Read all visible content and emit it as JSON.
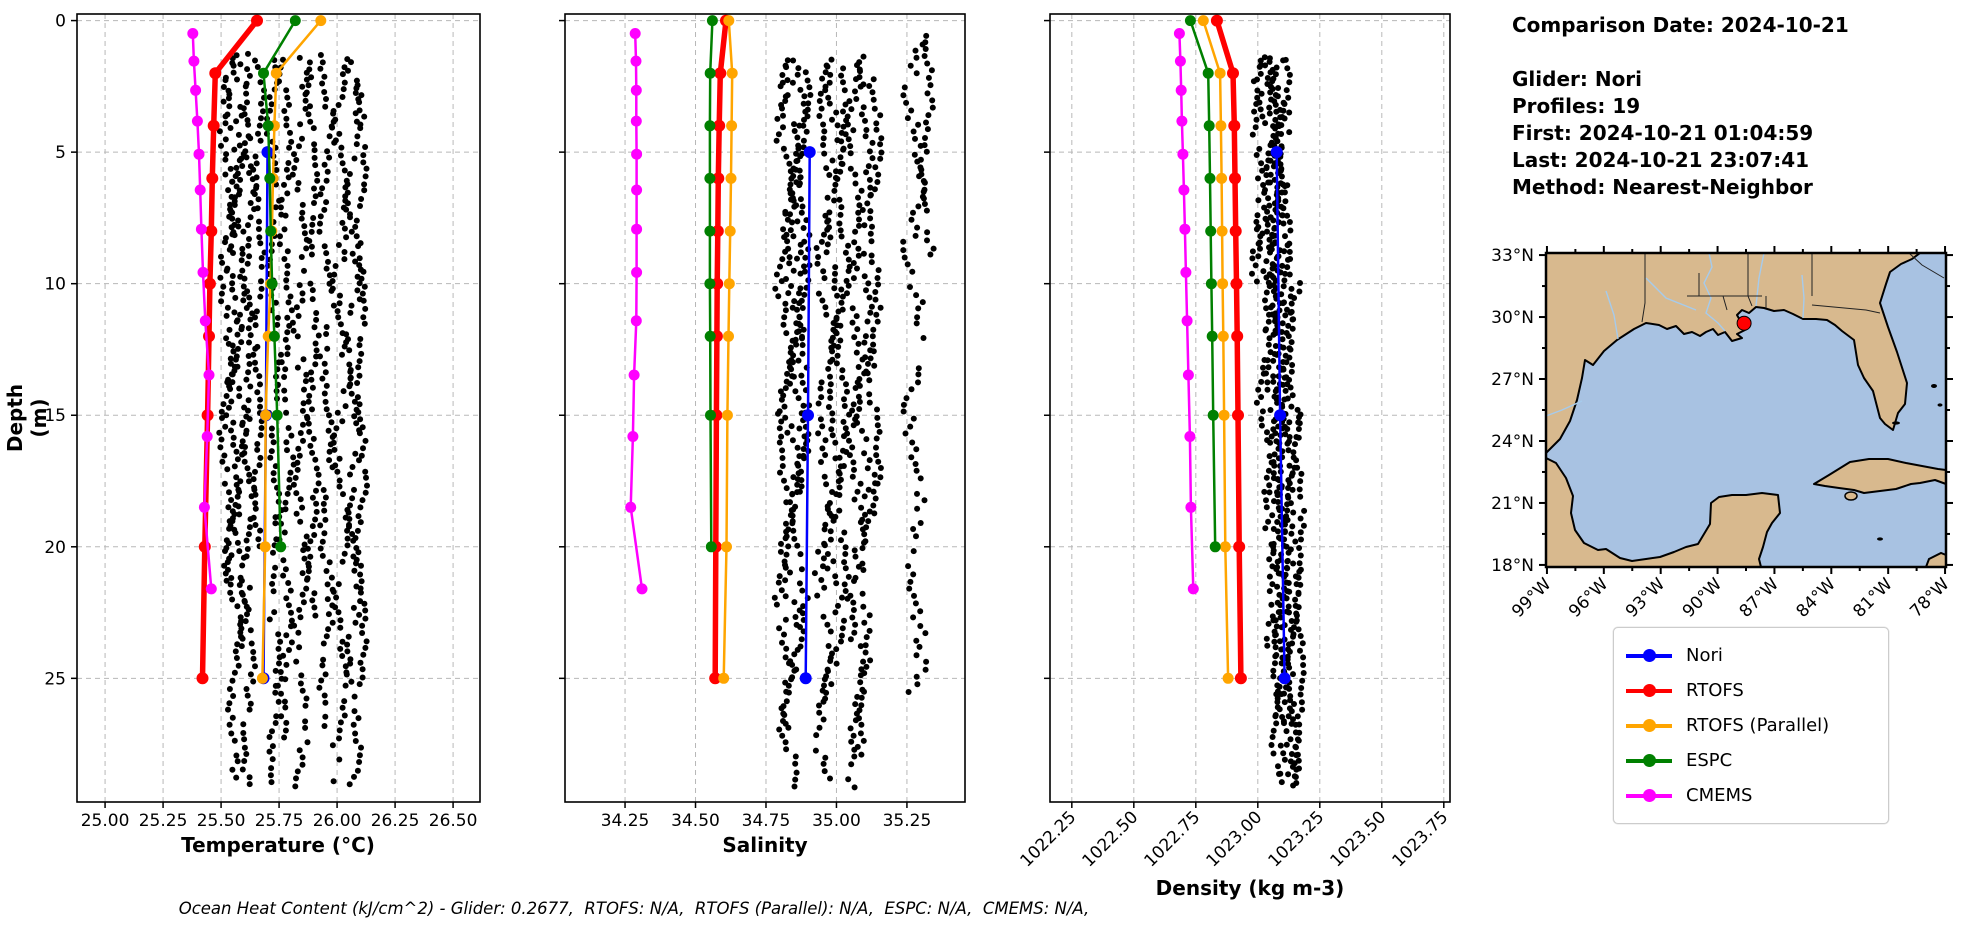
{
  "meta": {
    "ylabel": "Depth (m)",
    "annotation": "Ocean Heat Content (kJ/cm^2) - Glider: 0.2677,  RTOFS: N/A,  RTOFS (Parallel): N/A,  ESPC: N/A,  CMEMS: N/A,"
  },
  "info": {
    "title": "Comparison Date: 2024-10-21",
    "lines": [
      "Glider: Nori",
      "Profiles: 19",
      "First: 2024-10-21 01:04:59",
      "Last: 2024-10-21 23:07:41",
      "Method: Nearest-Neighbor"
    ]
  },
  "colors": {
    "nori": "#0000ff",
    "rtofs": "#ff0000",
    "rtofs_parallel": "#ffa500",
    "espc": "#008000",
    "cmems": "#ff00ff",
    "glider": "#00ffff",
    "grid": "#b8b8b8",
    "spine": "#000000"
  },
  "legend": [
    {
      "label": "Nori",
      "color": "nori"
    },
    {
      "label": "RTOFS",
      "color": "rtofs"
    },
    {
      "label": "RTOFS (Parallel)",
      "color": "rtofs_parallel"
    },
    {
      "label": "ESPC",
      "color": "espc"
    },
    {
      "label": "CMEMS",
      "color": "cmems"
    }
  ],
  "chart_data": [
    {
      "type": "scatter",
      "name": "temperature-profile",
      "xlabel": "Temperature (°C)",
      "ylabel": "Depth (m)",
      "xlim": [
        24.879,
        26.616
      ],
      "ylim": [
        29.7,
        -0.25
      ],
      "xticks": [
        {
          "v": 25.0,
          "l": "25.00"
        },
        {
          "v": 25.25,
          "l": "25.25"
        },
        {
          "v": 25.5,
          "l": "25.50"
        },
        {
          "v": 25.75,
          "l": "25.75"
        },
        {
          "v": 26.0,
          "l": "26.00"
        },
        {
          "v": 26.25,
          "l": "26.25"
        },
        {
          "v": 26.5,
          "l": "26.50"
        }
      ],
      "yticks": [
        {
          "v": 0,
          "l": "0"
        },
        {
          "v": 5,
          "l": "5"
        },
        {
          "v": 10,
          "l": "10"
        },
        {
          "v": 15,
          "l": "15"
        },
        {
          "v": 20,
          "l": "20"
        },
        {
          "v": 25,
          "l": "25"
        }
      ],
      "rotate_xticklabels": false,
      "show_yticklabels": true,
      "series": [
        {
          "name": "Nori",
          "color": "nori",
          "lw": 2.5,
          "mr": 6,
          "depths": [
            5,
            15,
            25
          ],
          "values": [
            25.7,
            25.693,
            25.683
          ]
        },
        {
          "name": "RTOFS",
          "color": "rtofs",
          "lw": 5.5,
          "mr": 6,
          "depths": [
            0,
            2,
            4,
            6,
            8,
            10,
            12,
            15,
            20,
            25
          ],
          "values": [
            25.655,
            25.475,
            25.468,
            25.462,
            25.458,
            25.452,
            25.448,
            25.442,
            25.43,
            25.42
          ]
        },
        {
          "name": "RTOFS (Parallel)",
          "color": "rtofs_parallel",
          "lw": 2.5,
          "mr": 5.5,
          "depths": [
            0,
            2,
            4,
            6,
            8,
            10,
            12,
            15,
            20,
            25
          ],
          "values": [
            25.93,
            25.738,
            25.73,
            25.724,
            25.719,
            25.713,
            25.703,
            25.692,
            25.69,
            25.678
          ]
        },
        {
          "name": "ESPC",
          "color": "espc",
          "lw": 2.5,
          "mr": 5.5,
          "depths": [
            0,
            2,
            4,
            6,
            8,
            10,
            12,
            15,
            20
          ],
          "values": [
            25.82,
            25.683,
            25.703,
            25.71,
            25.714,
            25.72,
            25.73,
            25.742,
            25.757
          ]
        },
        {
          "name": "CMEMS",
          "color": "cmems",
          "lw": 2.5,
          "mr": 5.5,
          "depths": [
            0.49,
            1.54,
            2.65,
            3.82,
            5.08,
            6.44,
            7.93,
            9.57,
            11.41,
            13.47,
            15.81,
            18.5,
            21.6
          ],
          "values": [
            25.378,
            25.383,
            25.39,
            25.398,
            25.405,
            25.41,
            25.415,
            25.422,
            25.432,
            25.448,
            25.44,
            25.428,
            25.458
          ]
        }
      ],
      "glider_scatter": {
        "name": "Glider (raw profiles)",
        "color": "glider",
        "dot_r": 3,
        "profiles": [
          [
            25.525,
            0.02,
            1.4,
            21.5,
            0.5
          ],
          [
            25.555,
            0.02,
            1.3,
            29.2,
            2.0
          ],
          [
            25.585,
            0.025,
            1.4,
            24.0,
            3.8
          ],
          [
            25.615,
            0.02,
            1.3,
            29.2,
            1.2
          ],
          [
            25.66,
            0.015,
            1.5,
            20.0,
            4.6
          ],
          [
            25.73,
            0.02,
            1.5,
            29.2,
            0.8
          ],
          [
            25.78,
            0.02,
            1.5,
            27.5,
            2.9
          ],
          [
            25.845,
            0.02,
            1.4,
            29.2,
            5.1
          ],
          [
            25.895,
            0.015,
            1.6,
            23.0,
            1.9
          ],
          [
            25.955,
            0.02,
            1.3,
            27.0,
            3.3
          ],
          [
            26.02,
            0.025,
            1.5,
            29.2,
            0.2
          ],
          [
            26.07,
            0.02,
            1.6,
            29.2,
            4.0
          ],
          [
            26.105,
            0.015,
            2.0,
            26.0,
            2.5
          ]
        ]
      }
    },
    {
      "type": "scatter",
      "name": "salinity-profile",
      "xlabel": "Salinity",
      "ylabel": "Depth (m)",
      "xlim": [
        34.037,
        35.456
      ],
      "ylim": [
        29.7,
        -0.25
      ],
      "xticks": [
        {
          "v": 34.25,
          "l": "34.25"
        },
        {
          "v": 34.5,
          "l": "34.50"
        },
        {
          "v": 34.75,
          "l": "34.75"
        },
        {
          "v": 35.0,
          "l": "35.00"
        },
        {
          "v": 35.25,
          "l": "35.25"
        }
      ],
      "yticks": [
        {
          "v": 0,
          "l": "0"
        },
        {
          "v": 5,
          "l": "5"
        },
        {
          "v": 10,
          "l": "10"
        },
        {
          "v": 15,
          "l": "15"
        },
        {
          "v": 20,
          "l": "20"
        },
        {
          "v": 25,
          "l": "25"
        }
      ],
      "rotate_xticklabels": false,
      "show_yticklabels": false,
      "series": [
        {
          "name": "Nori",
          "color": "nori",
          "lw": 2.5,
          "mr": 6,
          "depths": [
            5,
            15,
            25
          ],
          "values": [
            34.905,
            34.899,
            34.891
          ]
        },
        {
          "name": "RTOFS",
          "color": "rtofs",
          "lw": 5.5,
          "mr": 6,
          "depths": [
            0,
            2,
            4,
            6,
            8,
            10,
            12,
            15,
            20,
            25
          ],
          "values": [
            34.608,
            34.588,
            34.584,
            34.581,
            34.579,
            34.577,
            34.576,
            34.574,
            34.572,
            34.57
          ]
        },
        {
          "name": "RTOFS (Parallel)",
          "color": "rtofs_parallel",
          "lw": 2.5,
          "mr": 5.5,
          "depths": [
            0,
            2,
            4,
            6,
            8,
            10,
            12,
            15,
            20,
            25
          ],
          "values": [
            34.618,
            34.63,
            34.628,
            34.626,
            34.623,
            34.62,
            34.617,
            34.613,
            34.61,
            34.6
          ]
        },
        {
          "name": "ESPC",
          "color": "espc",
          "lw": 2.5,
          "mr": 5.5,
          "depths": [
            0,
            2,
            4,
            6,
            8,
            10,
            12,
            15,
            20
          ],
          "values": [
            34.56,
            34.552,
            34.551,
            34.551,
            34.551,
            34.551,
            34.552,
            34.553,
            34.556
          ]
        },
        {
          "name": "CMEMS",
          "color": "cmems",
          "lw": 2.5,
          "mr": 5.5,
          "depths": [
            0.49,
            1.54,
            2.65,
            3.82,
            5.08,
            6.44,
            7.93,
            9.57,
            11.41,
            13.47,
            15.81,
            18.5,
            21.6
          ],
          "values": [
            34.286,
            34.289,
            34.29,
            34.29,
            34.291,
            34.291,
            34.291,
            34.291,
            34.29,
            34.282,
            34.278,
            34.27,
            34.31
          ]
        }
      ],
      "glider_scatter": {
        "name": "Glider (raw profiles)",
        "color": "glider",
        "dot_r": 3,
        "profiles": [
          [
            34.815,
            0.02,
            1.5,
            27.0,
            0.7
          ],
          [
            34.84,
            0.025,
            1.4,
            29.2,
            2.1
          ],
          [
            34.865,
            0.02,
            1.5,
            25.0,
            3.6
          ],
          [
            34.882,
            0.015,
            2.0,
            18.0,
            5.0
          ],
          [
            34.96,
            0.02,
            1.4,
            29.2,
            1.3
          ],
          [
            34.99,
            0.02,
            1.5,
            26.0,
            2.8
          ],
          [
            35.02,
            0.015,
            1.8,
            22.0,
            4.4
          ],
          [
            35.07,
            0.02,
            1.4,
            29.2,
            0.3
          ],
          [
            35.1,
            0.02,
            1.6,
            28.0,
            2.0
          ],
          [
            35.135,
            0.015,
            2.2,
            19.0,
            3.1
          ],
          [
            35.28,
            0.025,
            0.6,
            26.0,
            1.7
          ],
          [
            35.32,
            0.015,
            0.8,
            9.0,
            4.9
          ]
        ]
      }
    },
    {
      "type": "scatter",
      "name": "density-profile",
      "xlabel": "Density (kg m-3)",
      "ylabel": "Depth (m)",
      "xlim": [
        1022.162,
        1023.775
      ],
      "ylim": [
        29.7,
        -0.25
      ],
      "xticks": [
        {
          "v": 1022.25,
          "l": "1022.25"
        },
        {
          "v": 1022.5,
          "l": "1022.50"
        },
        {
          "v": 1022.75,
          "l": "1022.75"
        },
        {
          "v": 1023.0,
          "l": "1023.00"
        },
        {
          "v": 1023.25,
          "l": "1023.25"
        },
        {
          "v": 1023.5,
          "l": "1023.50"
        },
        {
          "v": 1023.75,
          "l": "1023.75"
        }
      ],
      "yticks": [
        {
          "v": 0,
          "l": "0"
        },
        {
          "v": 5,
          "l": "5"
        },
        {
          "v": 10,
          "l": "10"
        },
        {
          "v": 15,
          "l": "15"
        },
        {
          "v": 20,
          "l": "20"
        },
        {
          "v": 25,
          "l": "25"
        }
      ],
      "rotate_xticklabels": true,
      "show_yticklabels": false,
      "series": [
        {
          "name": "Nori",
          "color": "nori",
          "lw": 2.5,
          "mr": 6,
          "depths": [
            5,
            15,
            25
          ],
          "values": [
            1023.076,
            1023.09,
            1023.108
          ]
        },
        {
          "name": "RTOFS",
          "color": "rtofs",
          "lw": 5.5,
          "mr": 6,
          "depths": [
            0,
            2,
            4,
            6,
            8,
            10,
            12,
            15,
            20,
            25
          ],
          "values": [
            1022.835,
            1022.9,
            1022.905,
            1022.908,
            1022.911,
            1022.914,
            1022.917,
            1022.92,
            1022.925,
            1022.932
          ]
        },
        {
          "name": "RTOFS (Parallel)",
          "color": "rtofs_parallel",
          "lw": 2.5,
          "mr": 5.5,
          "depths": [
            0,
            2,
            4,
            6,
            8,
            10,
            12,
            15,
            20,
            25
          ],
          "values": [
            1022.78,
            1022.848,
            1022.851,
            1022.854,
            1022.856,
            1022.858,
            1022.861,
            1022.864,
            1022.869,
            1022.88
          ]
        },
        {
          "name": "ESPC",
          "color": "espc",
          "lw": 2.5,
          "mr": 5.5,
          "depths": [
            0,
            2,
            4,
            6,
            8,
            10,
            12,
            15,
            20
          ],
          "values": [
            1022.728,
            1022.8,
            1022.804,
            1022.807,
            1022.81,
            1022.813,
            1022.816,
            1022.82,
            1022.828
          ]
        },
        {
          "name": "CMEMS",
          "color": "cmems",
          "lw": 2.5,
          "mr": 5.5,
          "depths": [
            0.49,
            1.54,
            2.65,
            3.82,
            5.08,
            6.44,
            7.93,
            9.57,
            11.41,
            13.47,
            15.81,
            18.5,
            21.6
          ],
          "values": [
            1022.684,
            1022.688,
            1022.691,
            1022.694,
            1022.698,
            1022.702,
            1022.706,
            1022.71,
            1022.715,
            1022.72,
            1022.726,
            1022.73,
            1022.74
          ]
        }
      ],
      "glider_scatter": {
        "name": "Glider (raw profiles)",
        "color": "glider",
        "dot_r": 3,
        "profiles": [
          [
            1023.0,
            0.015,
            1.5,
            10.0,
            0.9
          ],
          [
            1023.03,
            0.02,
            1.4,
            18.0,
            2.3
          ],
          [
            1023.055,
            0.02,
            1.4,
            24.0,
            3.9
          ],
          [
            1023.08,
            0.02,
            1.5,
            29.2,
            1.1
          ],
          [
            1023.1,
            0.02,
            1.5,
            29.2,
            5.2
          ],
          [
            1023.12,
            0.015,
            6.0,
            29.2,
            2.7
          ],
          [
            1023.145,
            0.015,
            10.0,
            29.2,
            4.1
          ],
          [
            1023.17,
            0.012,
            15.0,
            29.2,
            0.4
          ],
          [
            1023.06,
            0.015,
            1.6,
            12.0,
            1.8
          ],
          [
            1023.09,
            0.02,
            2.0,
            27.0,
            3.4
          ]
        ]
      }
    }
  ],
  "map": {
    "lat_ticks": [
      {
        "v": 33,
        "l": "33°N"
      },
      {
        "v": 30,
        "l": "30°N"
      },
      {
        "v": 27,
        "l": "27°N"
      },
      {
        "v": 24,
        "l": "24°N"
      },
      {
        "v": 21,
        "l": "21°N"
      },
      {
        "v": 18,
        "l": "18°N"
      }
    ],
    "lon_ticks": [
      {
        "v": -99,
        "l": "99°W"
      },
      {
        "v": -96,
        "l": "96°W"
      },
      {
        "v": -93,
        "l": "93°W"
      },
      {
        "v": -90,
        "l": "90°W"
      },
      {
        "v": -87,
        "l": "87°W"
      },
      {
        "v": -84,
        "l": "84°W"
      },
      {
        "v": -81,
        "l": "81°W"
      },
      {
        "v": -78,
        "l": "78°W"
      }
    ],
    "marker": {
      "lon": -88.6,
      "lat": 29.7,
      "color": "#ff0000"
    },
    "extent": {
      "lon_min": -99.05,
      "lon_max": -77.95,
      "lat_min": 17.9,
      "lat_max": 33.1
    },
    "colors": {
      "land": "#d8b98e",
      "water": "#a8c2e2",
      "river": "#a6cbec",
      "coast": "#000000",
      "border": "#222222"
    }
  }
}
